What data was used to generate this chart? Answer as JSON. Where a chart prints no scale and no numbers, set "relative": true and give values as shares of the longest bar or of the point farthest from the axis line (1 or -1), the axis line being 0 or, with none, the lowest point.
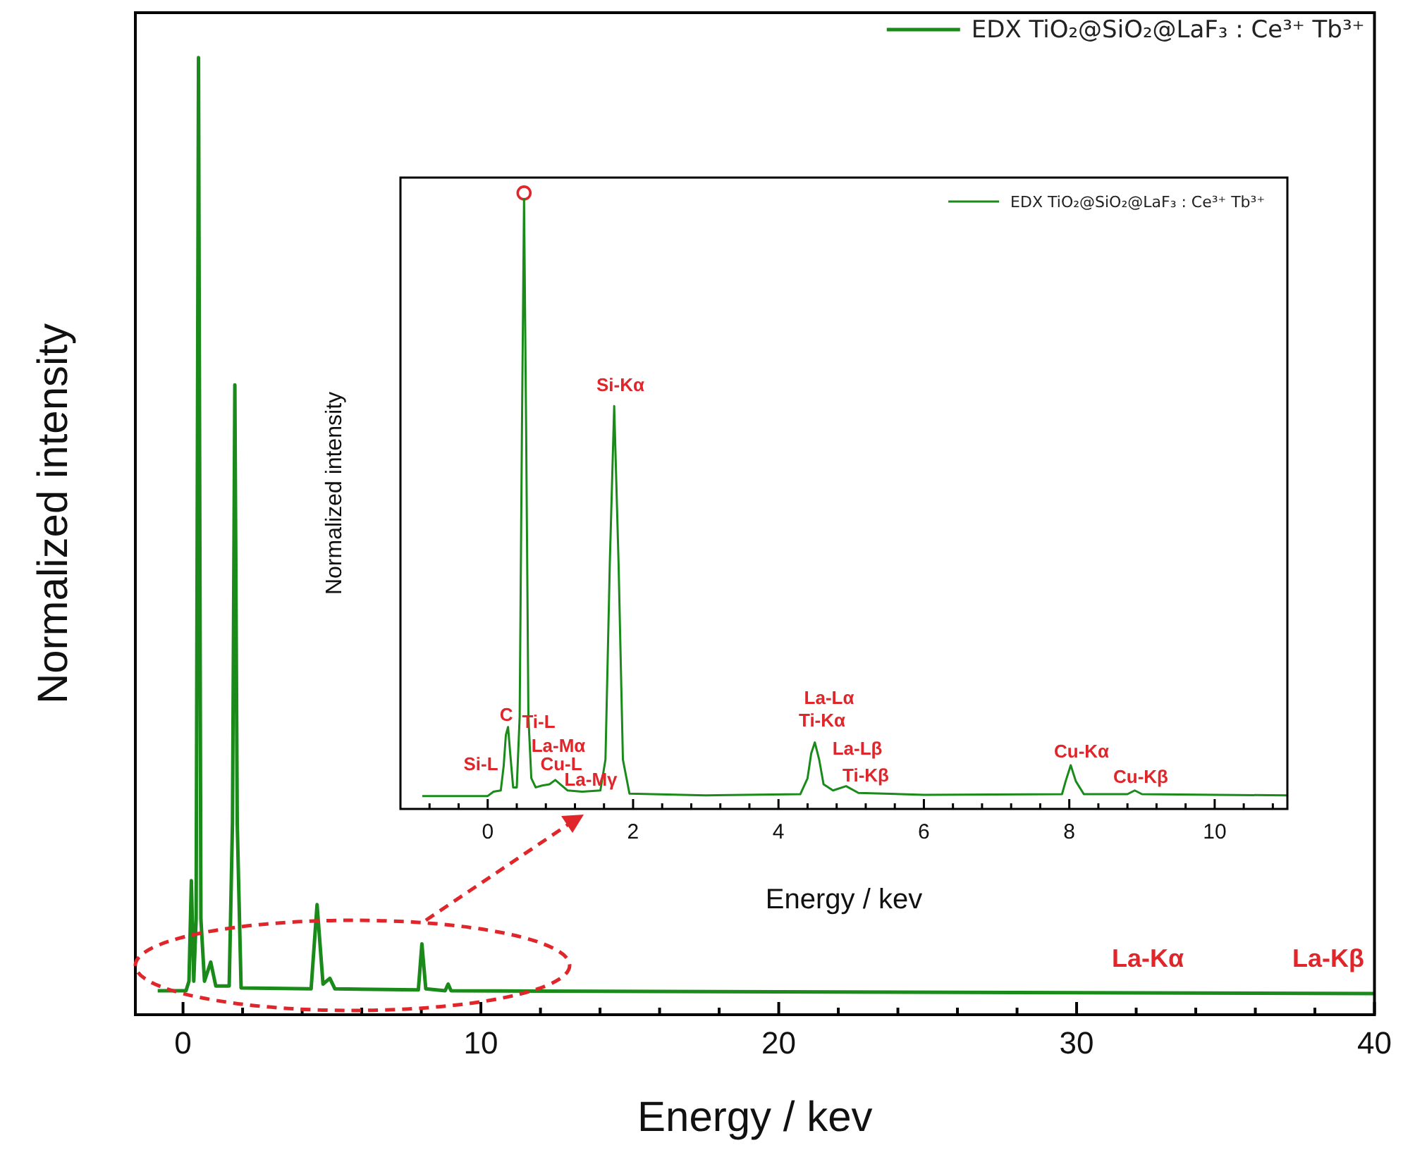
{
  "chart_data": [
    {
      "type": "line",
      "relative": true,
      "xlabel": "Energy / kev",
      "ylabel": "Normalized intensity",
      "xlim": [
        -1.6,
        40
      ],
      "xticks": [
        0,
        {
          "value": 2,
          "label": null
        },
        {
          "value": 4,
          "label": null
        },
        {
          "value": 6,
          "label": null
        },
        {
          "value": 8,
          "label": null
        },
        10,
        {
          "value": 12,
          "label": null
        },
        {
          "value": 14,
          "label": null
        },
        {
          "value": 16,
          "label": null
        },
        {
          "value": 18,
          "label": null
        },
        20,
        {
          "value": 22,
          "label": null
        },
        {
          "value": 24,
          "label": null
        },
        {
          "value": 26,
          "label": null
        },
        {
          "value": 28,
          "label": null
        },
        30,
        {
          "value": 32,
          "label": null
        },
        {
          "value": 34,
          "label": null
        },
        {
          "value": 36,
          "label": null
        },
        {
          "value": 38,
          "label": null
        },
        40
      ],
      "legend": "top right",
      "series": [
        {
          "name": "EDX TiO₂@SiO₂@LaF₃ : Ce³⁺ Tb³⁺",
          "color": "#1a8a1a",
          "x": [
            -0.85,
            0.1,
            0.2,
            0.28,
            0.36,
            0.44,
            0.52,
            0.6,
            0.72,
            0.93,
            1.1,
            1.55,
            1.66,
            1.74,
            1.82,
            1.95,
            4.3,
            4.5,
            4.7,
            4.93,
            5.1,
            7.9,
            8.02,
            8.15,
            8.8,
            8.9,
            9.0,
            20,
            40
          ],
          "values": [
            0.025,
            0.025,
            0.035,
            0.14,
            0.035,
            0.1,
            1,
            0.1,
            0.035,
            0.055,
            0.03,
            0.03,
            0.2,
            0.658,
            0.2,
            0.028,
            0.027,
            0.115,
            0.032,
            0.038,
            0.027,
            0.026,
            0.074,
            0.027,
            0.025,
            0.032,
            0.025,
            0.024,
            0.022
          ]
        }
      ],
      "annotations": [
        "La-Kα",
        "La-Kβ"
      ]
    },
    {
      "type": "line",
      "relative": true,
      "xlabel": "Energy / kev",
      "ylabel": "Normalized intensity",
      "xlim": [
        -1.2,
        11.0
      ],
      "xticks": [
        {
          "value": -0.8,
          "label": null
        },
        {
          "value": -0.4,
          "label": null
        },
        0,
        {
          "value": 0.4,
          "label": null
        },
        {
          "value": 0.8,
          "label": null
        },
        {
          "value": 1.2,
          "label": null
        },
        {
          "value": 1.6,
          "label": null
        },
        2,
        {
          "value": 2.4,
          "label": null
        },
        {
          "value": 2.8,
          "label": null
        },
        {
          "value": 3.2,
          "label": null
        },
        {
          "value": 3.6,
          "label": null
        },
        4,
        {
          "value": 4.4,
          "label": null
        },
        {
          "value": 4.8,
          "label": null
        },
        {
          "value": 5.2,
          "label": null
        },
        {
          "value": 5.6,
          "label": null
        },
        6,
        {
          "value": 6.4,
          "label": null
        },
        {
          "value": 6.8,
          "label": null
        },
        {
          "value": 7.2,
          "label": null
        },
        {
          "value": 7.6,
          "label": null
        },
        8,
        {
          "value": 8.4,
          "label": null
        },
        {
          "value": 8.8,
          "label": null
        },
        {
          "value": 9.2,
          "label": null
        },
        {
          "value": 9.6,
          "label": null
        },
        10,
        {
          "value": 10.4,
          "label": null
        },
        {
          "value": 10.8,
          "label": null
        }
      ],
      "legend": "top right",
      "series": [
        {
          "name": "EDX TiO₂@SiO₂@LaF₃ : Ce³⁺ Tb³⁺",
          "color": "#1a8a1a",
          "x": [
            -0.9,
            0.0,
            0.08,
            0.18,
            0.22,
            0.25,
            0.28,
            0.31,
            0.35,
            0.4,
            0.44,
            0.47,
            0.5,
            0.53,
            0.56,
            0.6,
            0.66,
            0.75,
            0.85,
            0.93,
            1.0,
            1.1,
            1.3,
            1.55,
            1.62,
            1.68,
            1.74,
            1.8,
            1.86,
            1.95,
            3.0,
            4.3,
            4.4,
            4.45,
            4.5,
            4.56,
            4.62,
            4.75,
            4.93,
            5.1,
            6.0,
            7.9,
            7.95,
            8.02,
            8.09,
            8.2,
            8.8,
            8.9,
            9.0,
            11.0
          ],
          "values": [
            0.021,
            0.021,
            0.028,
            0.03,
            0.07,
            0.12,
            0.133,
            0.09,
            0.035,
            0.035,
            0.15,
            0.6,
            0.99,
            0.6,
            0.15,
            0.05,
            0.035,
            0.038,
            0.04,
            0.047,
            0.04,
            0.03,
            0.028,
            0.03,
            0.08,
            0.4,
            0.654,
            0.4,
            0.08,
            0.025,
            0.022,
            0.024,
            0.05,
            0.09,
            0.108,
            0.08,
            0.04,
            0.03,
            0.037,
            0.026,
            0.023,
            0.024,
            0.045,
            0.071,
            0.045,
            0.024,
            0.024,
            0.03,
            0.024,
            0.022
          ]
        },
        {
          "type": "scatter",
          "marker": "circle",
          "color": "#e0262a",
          "x": [
            0.5
          ],
          "values": [
            1
          ]
        }
      ],
      "annotations": [
        "Si-L",
        "C",
        "Ti-L",
        "La-Mα",
        "Cu-L",
        "La-Mγ",
        "Si-Kα",
        "La-Lα",
        "Ti-Kα",
        "La-Lβ",
        "Ti-Kβ",
        "Cu-Kα",
        "Cu-Kβ"
      ]
    }
  ]
}
